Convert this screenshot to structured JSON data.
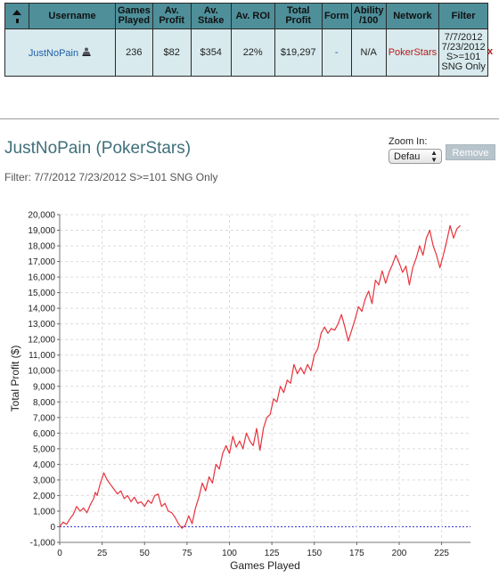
{
  "table": {
    "headers": {
      "username": "Username",
      "games_played": [
        "Games",
        "Played"
      ],
      "av_profit": [
        "Av.",
        "Profit"
      ],
      "av_stake": [
        "Av.",
        "Stake"
      ],
      "av_roi": "Av. ROI",
      "total_profit": [
        "Total",
        "Profit"
      ],
      "form": "Form",
      "ability": [
        "Ability",
        "/100"
      ],
      "network": "Network",
      "filter": "Filter"
    },
    "row": {
      "username": "JustNoPain",
      "games_played": "236",
      "av_profit": "$82",
      "av_stake": "$354",
      "av_roi": "22%",
      "total_profit": "$19,297",
      "form": "-",
      "ability": "N/A",
      "network": "PokerStars",
      "filter_lines": [
        "7/7/2012",
        "7/23/2012",
        "S>=101",
        "SNG Only"
      ],
      "remove": "x"
    }
  },
  "header": {
    "title": "JustNoPain (PokerStars)",
    "filter": "Filter: 7/7/2012 7/23/2012 S>=101 SNG Only"
  },
  "zoom": {
    "label": "Zoom In:",
    "selected": "Defau"
  },
  "remove_button": "Remove",
  "colors": {
    "line": "#e8323c",
    "header_bg": "#4e8f9a",
    "row_bg": "#d8eaed",
    "title": "#3f6f7a"
  },
  "chart_data": {
    "type": "line",
    "xlabel": "Games Played",
    "ylabel": "Total Profit ($)",
    "xlim": [
      0,
      242
    ],
    "ylim": [
      -1000,
      20000
    ],
    "x_ticks": [
      0,
      25,
      50,
      75,
      100,
      125,
      150,
      175,
      200,
      225
    ],
    "y_ticks": [
      -1000,
      0,
      1000,
      2000,
      3000,
      4000,
      5000,
      6000,
      7000,
      8000,
      9000,
      10000,
      11000,
      12000,
      13000,
      14000,
      15000,
      16000,
      17000,
      18000,
      19000,
      20000
    ],
    "x_tick_labels": [
      "0",
      "25",
      "50",
      "75",
      "100",
      "125",
      "150",
      "175",
      "200",
      "225"
    ],
    "y_tick_labels": [
      "-1,000",
      "0",
      "1,000",
      "2,000",
      "3,000",
      "4,000",
      "5,000",
      "6,000",
      "7,000",
      "8,000",
      "9,000",
      "10,000",
      "11,000",
      "12,000",
      "13,000",
      "14,000",
      "15,000",
      "16,000",
      "17,000",
      "18,000",
      "19,000",
      "20,000"
    ],
    "grid": true,
    "zero_line": true,
    "series": [
      {
        "values": [
          [
            0,
            0
          ],
          [
            2,
            300
          ],
          [
            4,
            150
          ],
          [
            6,
            500
          ],
          [
            8,
            800
          ],
          [
            10,
            1300
          ],
          [
            12,
            1000
          ],
          [
            14,
            1200
          ],
          [
            16,
            900
          ],
          [
            18,
            1400
          ],
          [
            20,
            1800
          ],
          [
            21,
            2200
          ],
          [
            22,
            2000
          ],
          [
            24,
            2800
          ],
          [
            26,
            3450
          ],
          [
            28,
            3000
          ],
          [
            30,
            2700
          ],
          [
            32,
            2400
          ],
          [
            34,
            2100
          ],
          [
            36,
            2300
          ],
          [
            38,
            1800
          ],
          [
            40,
            2000
          ],
          [
            42,
            1600
          ],
          [
            44,
            1900
          ],
          [
            46,
            1500
          ],
          [
            48,
            1600
          ],
          [
            50,
            1300
          ],
          [
            52,
            1700
          ],
          [
            54,
            1500
          ],
          [
            56,
            2000
          ],
          [
            58,
            2100
          ],
          [
            60,
            1300
          ],
          [
            62,
            1500
          ],
          [
            64,
            1000
          ],
          [
            66,
            900
          ],
          [
            68,
            600
          ],
          [
            70,
            200
          ],
          [
            72,
            -100
          ],
          [
            74,
            100
          ],
          [
            76,
            700
          ],
          [
            78,
            200
          ],
          [
            80,
            1200
          ],
          [
            82,
            1900
          ],
          [
            84,
            2800
          ],
          [
            86,
            2300
          ],
          [
            88,
            3200
          ],
          [
            90,
            2800
          ],
          [
            92,
            4000
          ],
          [
            94,
            3700
          ],
          [
            96,
            4700
          ],
          [
            98,
            5200
          ],
          [
            100,
            4700
          ],
          [
            102,
            5800
          ],
          [
            104,
            5100
          ],
          [
            106,
            5500
          ],
          [
            108,
            5000
          ],
          [
            110,
            6000
          ],
          [
            112,
            5500
          ],
          [
            114,
            5200
          ],
          [
            116,
            6300
          ],
          [
            118,
            4900
          ],
          [
            120,
            6300
          ],
          [
            122,
            7000
          ],
          [
            124,
            7200
          ],
          [
            126,
            8200
          ],
          [
            128,
            8000
          ],
          [
            130,
            9000
          ],
          [
            132,
            8600
          ],
          [
            134,
            9400
          ],
          [
            136,
            9200
          ],
          [
            138,
            10400
          ],
          [
            140,
            9800
          ],
          [
            142,
            10200
          ],
          [
            144,
            9800
          ],
          [
            146,
            10400
          ],
          [
            148,
            10000
          ],
          [
            150,
            11000
          ],
          [
            152,
            11400
          ],
          [
            154,
            12400
          ],
          [
            156,
            12800
          ],
          [
            158,
            12400
          ],
          [
            160,
            12700
          ],
          [
            162,
            12600
          ],
          [
            164,
            13000
          ],
          [
            166,
            13600
          ],
          [
            168,
            12800
          ],
          [
            170,
            11900
          ],
          [
            172,
            12600
          ],
          [
            174,
            13300
          ],
          [
            176,
            14100
          ],
          [
            178,
            13800
          ],
          [
            180,
            14600
          ],
          [
            182,
            15100
          ],
          [
            184,
            14300
          ],
          [
            186,
            15800
          ],
          [
            188,
            15500
          ],
          [
            190,
            16400
          ],
          [
            192,
            15600
          ],
          [
            194,
            16300
          ],
          [
            196,
            16800
          ],
          [
            198,
            17400
          ],
          [
            200,
            16900
          ],
          [
            202,
            16300
          ],
          [
            204,
            16700
          ],
          [
            206,
            15500
          ],
          [
            208,
            16600
          ],
          [
            210,
            17200
          ],
          [
            212,
            18000
          ],
          [
            214,
            17400
          ],
          [
            216,
            18500
          ],
          [
            218,
            19000
          ],
          [
            220,
            18000
          ],
          [
            222,
            17400
          ],
          [
            224,
            16600
          ],
          [
            226,
            17400
          ],
          [
            228,
            18300
          ],
          [
            230,
            19300
          ],
          [
            232,
            18500
          ],
          [
            234,
            19100
          ],
          [
            236,
            19297
          ]
        ]
      }
    ]
  }
}
